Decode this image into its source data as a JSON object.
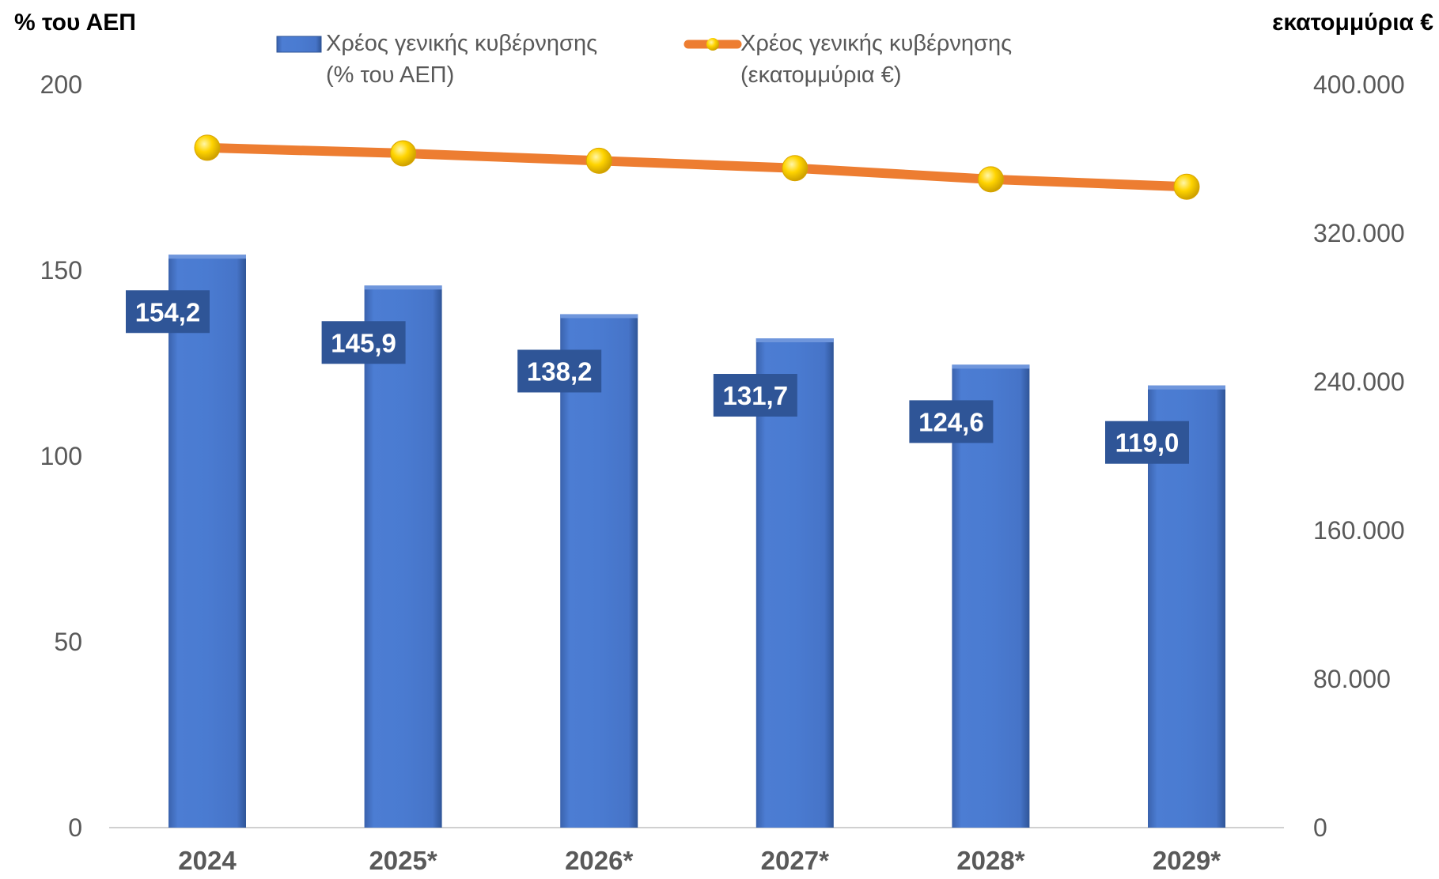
{
  "chart_data": {
    "type": "bar",
    "categories": [
      "2024",
      "2025*",
      "2026*",
      "2027*",
      "2028*",
      "2029*"
    ],
    "series": [
      {
        "name": "Χρέος γενικής κυβέρνησης (% του ΑΕΠ)",
        "legend_lines": [
          "Χρέος γενικής κυβέρνησης",
          "(% του ΑΕΠ)"
        ],
        "type": "bar",
        "axis": "left",
        "values": [
          154.2,
          145.9,
          138.2,
          131.7,
          124.6,
          119.0
        ],
        "data_labels": [
          "154,2",
          "145,9",
          "138,2",
          "131,7",
          "124,6",
          "119,0"
        ],
        "color": "#4472C4"
      },
      {
        "name": "Χρέος γενικής κυβέρνησης (εκατομμύρια €)",
        "legend_lines": [
          "Χρέος γενικής κυβέρνησης",
          "(εκατομμύρια €)"
        ],
        "type": "line",
        "axis": "right",
        "values": [
          366000,
          363000,
          359000,
          355000,
          349000,
          345000
        ],
        "color": "#ED7D31",
        "marker_color": "#FFD700"
      }
    ],
    "y_left": {
      "title": "% του ΑΕΠ",
      "ylim": [
        0,
        200
      ],
      "ticks": [
        0,
        50,
        100,
        150,
        200
      ],
      "tick_labels": [
        "0",
        "50",
        "100",
        "150",
        "200"
      ]
    },
    "y_right": {
      "title": "εκατομμύρια €",
      "ylim": [
        0,
        400000
      ],
      "ticks": [
        0,
        80000,
        160000,
        240000,
        320000,
        400000
      ],
      "tick_labels": [
        "0",
        "80.000",
        "160.000",
        "240.000",
        "320.000",
        "400.000"
      ]
    },
    "legend_position": "top",
    "grid": false
  }
}
